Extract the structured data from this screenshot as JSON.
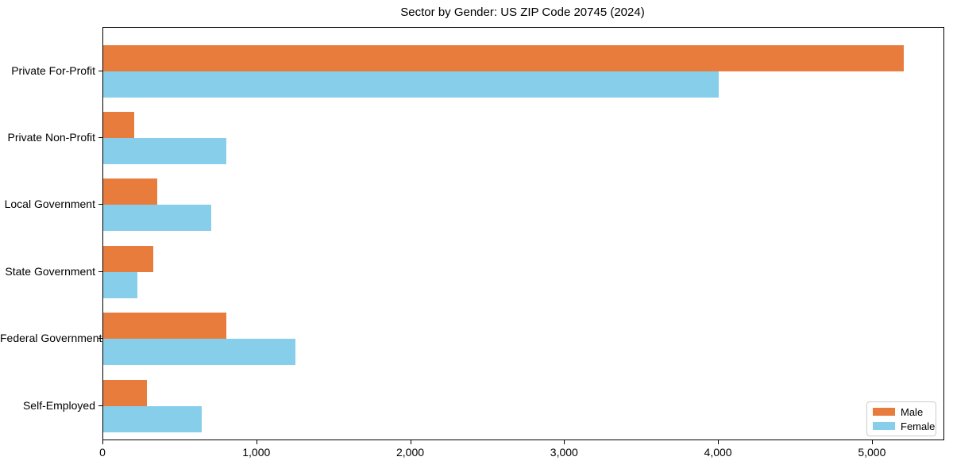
{
  "chart_data": {
    "type": "bar",
    "orientation": "horizontal",
    "title": "Sector by Gender: US ZIP Code 20745 (2024)",
    "categories": [
      "Private For-Profit",
      "Private Non-Profit",
      "Local Government",
      "State Government",
      "Federal Government",
      "Self-Employed"
    ],
    "series": [
      {
        "name": "Male",
        "color": "#E87C3C",
        "values": [
          5200,
          200,
          350,
          325,
          800,
          285
        ]
      },
      {
        "name": "Female",
        "color": "#87CEEB",
        "values": [
          4000,
          800,
          700,
          220,
          1250,
          640
        ]
      }
    ],
    "x_tick_values": [
      0,
      1000,
      2000,
      3000,
      4000,
      5000
    ],
    "x_tick_labels": [
      "0",
      "1,000",
      "2,000",
      "3,000",
      "4,000",
      "5,000"
    ],
    "xlim": [
      0,
      5460
    ],
    "xlabel": "",
    "ylabel": "",
    "grid": false,
    "legend": {
      "position": "lower-right"
    },
    "colors": {
      "background": "#ffffff",
      "spine": "#000000",
      "legend_border": "#cccccc"
    }
  }
}
